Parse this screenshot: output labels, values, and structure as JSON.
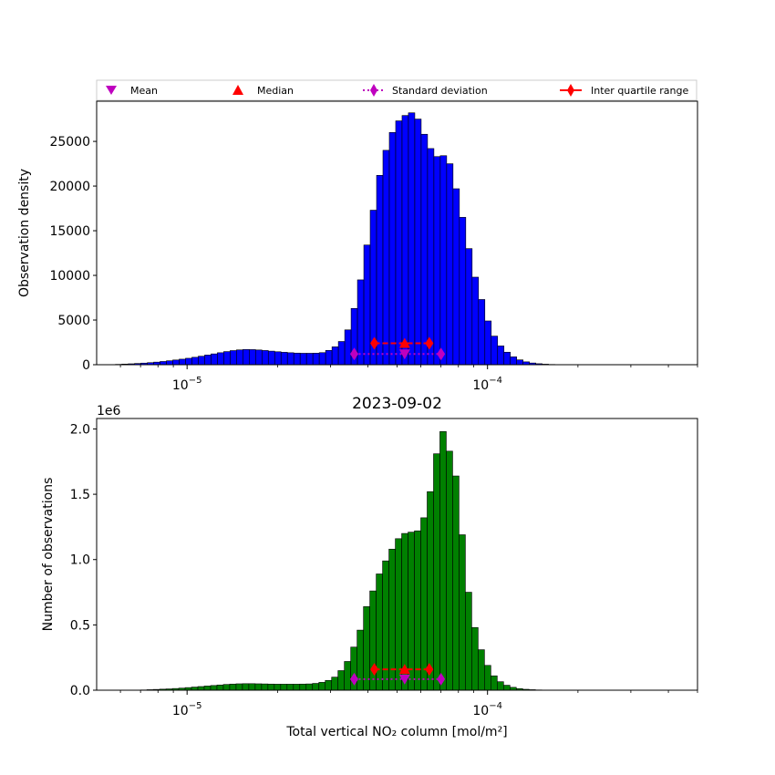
{
  "legend": {
    "placement": "top",
    "entries": [
      {
        "label": "Mean",
        "marker": "triangle-down",
        "color": "#bf00bf"
      },
      {
        "label": "Median",
        "marker": "triangle-up",
        "color": "#ff0000"
      },
      {
        "label": "Standard deviation",
        "marker": "diamond",
        "line": "dotted",
        "color": "#bf00bf"
      },
      {
        "label": "Inter quartile range",
        "marker": "diamond",
        "line": "solid",
        "color": "#ff0000"
      }
    ]
  },
  "chart_data": [
    {
      "type": "bar",
      "title": "",
      "xlabel": "",
      "ylabel": "Observation density",
      "xscale": "log",
      "xlim": [
        5e-06,
        0.0005
      ],
      "ylim": [
        0,
        29500
      ],
      "yticks": [
        0,
        5000,
        10000,
        15000,
        20000,
        25000
      ],
      "ytick_labels": [
        "0",
        "5000",
        "10000",
        "15000",
        "20000",
        "25000"
      ],
      "xticks": [
        1e-05,
        0.0001
      ],
      "xtick_labels": [
        {
          "base": "10",
          "exp": "−5"
        },
        {
          "base": "10",
          "exp": "−4"
        }
      ],
      "offset_text": "",
      "bar_color": "#0000ff",
      "bins": {
        "start": 5.5e-06,
        "log_step": 0.0212
      },
      "values": [
        20,
        40,
        70,
        100,
        140,
        180,
        230,
        290,
        360,
        440,
        530,
        620,
        720,
        830,
        950,
        1080,
        1210,
        1340,
        1470,
        1580,
        1660,
        1700,
        1690,
        1650,
        1590,
        1520,
        1450,
        1390,
        1340,
        1300,
        1280,
        1280,
        1290,
        1350,
        1600,
        2000,
        2600,
        3900,
        6300,
        9500,
        13400,
        17300,
        21200,
        24000,
        26000,
        27300,
        27900,
        28200,
        27500,
        25800,
        24200,
        23300,
        23400,
        22500,
        19700,
        16500,
        13000,
        9800,
        7300,
        4900,
        3200,
        2100,
        1400,
        880,
        540,
        320,
        190,
        110,
        60,
        30,
        15,
        8,
        4,
        2,
        1
      ],
      "stats": {
        "mean": {
          "x": 5.3e-05,
          "y": 1200
        },
        "median": {
          "x": 5.3e-05,
          "y": 2400
        },
        "std": {
          "x": [
            3.6e-05,
            7e-05
          ],
          "y": 1200
        },
        "iqr": {
          "x": [
            4.2e-05,
            6.4e-05
          ],
          "y": 2400
        }
      }
    },
    {
      "type": "bar",
      "title": "2023-09-02",
      "xlabel": "Total vertical NO₂ column [mol/m²]",
      "ylabel": "Number of observations",
      "xscale": "log",
      "xlim": [
        5e-06,
        0.0005
      ],
      "ylim": [
        0,
        2.08
      ],
      "yticks": [
        0,
        0.5,
        1.0,
        1.5,
        2.0
      ],
      "ytick_labels": [
        "0.0",
        "0.5",
        "1.0",
        "1.5",
        "2.0"
      ],
      "xticks": [
        1e-05,
        0.0001
      ],
      "xtick_labels": [
        {
          "base": "10",
          "exp": "−5"
        },
        {
          "base": "10",
          "exp": "−4"
        }
      ],
      "offset_text": "1e6",
      "bar_color": "#008000",
      "bins": {
        "start": 7e-06,
        "log_step": 0.0212
      },
      "values": [
        0.002,
        0.004,
        0.006,
        0.008,
        0.01,
        0.013,
        0.016,
        0.02,
        0.024,
        0.028,
        0.032,
        0.036,
        0.04,
        0.044,
        0.047,
        0.049,
        0.05,
        0.05,
        0.049,
        0.048,
        0.047,
        0.046,
        0.046,
        0.046,
        0.046,
        0.047,
        0.048,
        0.052,
        0.06,
        0.075,
        0.1,
        0.15,
        0.22,
        0.33,
        0.46,
        0.64,
        0.76,
        0.89,
        0.99,
        1.08,
        1.16,
        1.2,
        1.21,
        1.22,
        1.32,
        1.52,
        1.81,
        1.98,
        1.83,
        1.64,
        1.19,
        0.75,
        0.48,
        0.31,
        0.19,
        0.11,
        0.065,
        0.038,
        0.022,
        0.012,
        0.007,
        0.004,
        0.002,
        0.001
      ],
      "stats": {
        "mean": {
          "x": 5.3e-05,
          "y": 0.085
        },
        "median": {
          "x": 5.3e-05,
          "y": 0.16
        },
        "std": {
          "x": [
            3.6e-05,
            7e-05
          ],
          "y": 0.085
        },
        "iqr": {
          "x": [
            4.2e-05,
            6.4e-05
          ],
          "y": 0.16
        }
      }
    }
  ]
}
